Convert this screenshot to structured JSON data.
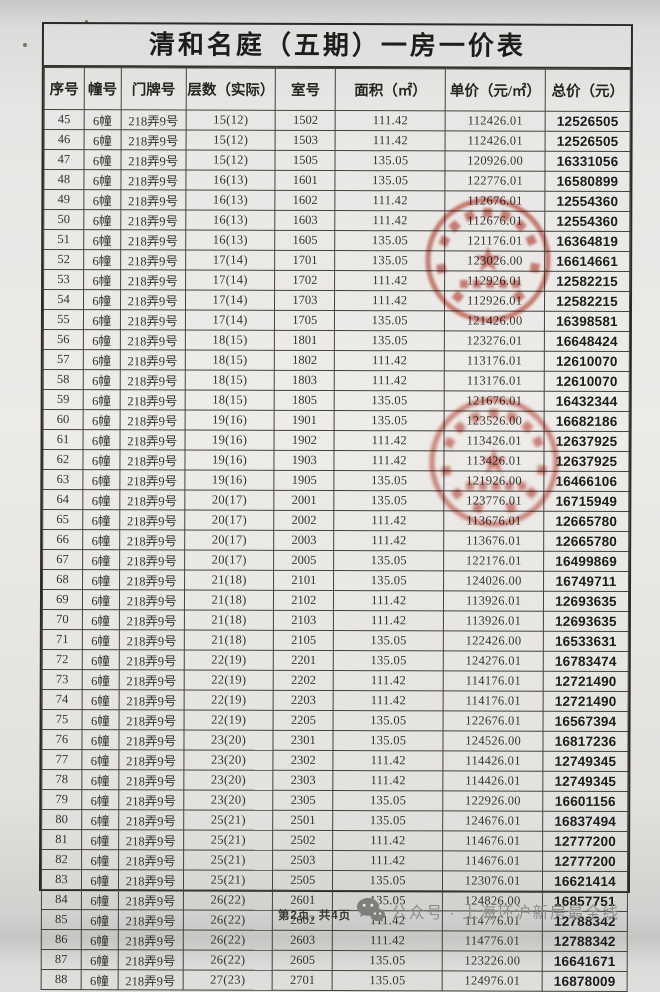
{
  "doc": {
    "title": "清和名庭（五期）一房一价表",
    "footer": {
      "page_info": "第2页, 共4页",
      "account": "公众号 · 上海环沪新房最全线"
    }
  },
  "table": {
    "columns": [
      "序号",
      "幢号",
      "门牌号",
      "层数（实际）",
      "室号",
      "面积（㎡）",
      "单价（元/㎡）",
      "总价（元）"
    ],
    "rows": [
      [
        "45",
        "6幢",
        "218弄9号",
        "15(12)",
        "1502",
        "111.42",
        "112426.01",
        "12526505"
      ],
      [
        "46",
        "6幢",
        "218弄9号",
        "15(12)",
        "1503",
        "111.42",
        "112426.01",
        "12526505"
      ],
      [
        "47",
        "6幢",
        "218弄9号",
        "15(12)",
        "1505",
        "135.05",
        "120926.00",
        "16331056"
      ],
      [
        "48",
        "6幢",
        "218弄9号",
        "16(13)",
        "1601",
        "135.05",
        "122776.01",
        "16580899"
      ],
      [
        "49",
        "6幢",
        "218弄9号",
        "16(13)",
        "1602",
        "111.42",
        "112676.01",
        "12554360"
      ],
      [
        "50",
        "6幢",
        "218弄9号",
        "16(13)",
        "1603",
        "111.42",
        "112676.01",
        "12554360"
      ],
      [
        "51",
        "6幢",
        "218弄9号",
        "16(13)",
        "1605",
        "135.05",
        "121176.01",
        "16364819"
      ],
      [
        "52",
        "6幢",
        "218弄9号",
        "17(14)",
        "1701",
        "135.05",
        "123026.00",
        "16614661"
      ],
      [
        "53",
        "6幢",
        "218弄9号",
        "17(14)",
        "1702",
        "111.42",
        "112926.01",
        "12582215"
      ],
      [
        "54",
        "6幢",
        "218弄9号",
        "17(14)",
        "1703",
        "111.42",
        "112926.01",
        "12582215"
      ],
      [
        "55",
        "6幢",
        "218弄9号",
        "17(14)",
        "1705",
        "135.05",
        "121426.00",
        "16398581"
      ],
      [
        "56",
        "6幢",
        "218弄9号",
        "18(15)",
        "1801",
        "135.05",
        "123276.01",
        "16648424"
      ],
      [
        "57",
        "6幢",
        "218弄9号",
        "18(15)",
        "1802",
        "111.42",
        "113176.01",
        "12610070"
      ],
      [
        "58",
        "6幢",
        "218弄9号",
        "18(15)",
        "1803",
        "111.42",
        "113176.01",
        "12610070"
      ],
      [
        "59",
        "6幢",
        "218弄9号",
        "18(15)",
        "1805",
        "135.05",
        "121676.01",
        "16432344"
      ],
      [
        "60",
        "6幢",
        "218弄9号",
        "19(16)",
        "1901",
        "135.05",
        "123526.00",
        "16682186"
      ],
      [
        "61",
        "6幢",
        "218弄9号",
        "19(16)",
        "1902",
        "111.42",
        "113426.01",
        "12637925"
      ],
      [
        "62",
        "6幢",
        "218弄9号",
        "19(16)",
        "1903",
        "111.42",
        "113426.01",
        "12637925"
      ],
      [
        "63",
        "6幢",
        "218弄9号",
        "19(16)",
        "1905",
        "135.05",
        "121926.00",
        "16466106"
      ],
      [
        "64",
        "6幢",
        "218弄9号",
        "20(17)",
        "2001",
        "135.05",
        "123776.01",
        "16715949"
      ],
      [
        "65",
        "6幢",
        "218弄9号",
        "20(17)",
        "2002",
        "111.42",
        "113676.01",
        "12665780"
      ],
      [
        "66",
        "6幢",
        "218弄9号",
        "20(17)",
        "2003",
        "111.42",
        "113676.01",
        "12665780"
      ],
      [
        "67",
        "6幢",
        "218弄9号",
        "20(17)",
        "2005",
        "135.05",
        "122176.01",
        "16499869"
      ],
      [
        "68",
        "6幢",
        "218弄9号",
        "21(18)",
        "2101",
        "135.05",
        "124026.00",
        "16749711"
      ],
      [
        "69",
        "6幢",
        "218弄9号",
        "21(18)",
        "2102",
        "111.42",
        "113926.01",
        "12693635"
      ],
      [
        "70",
        "6幢",
        "218弄9号",
        "21(18)",
        "2103",
        "111.42",
        "113926.01",
        "12693635"
      ],
      [
        "71",
        "6幢",
        "218弄9号",
        "21(18)",
        "2105",
        "135.05",
        "122426.00",
        "16533631"
      ],
      [
        "72",
        "6幢",
        "218弄9号",
        "22(19)",
        "2201",
        "135.05",
        "124276.01",
        "16783474"
      ],
      [
        "73",
        "6幢",
        "218弄9号",
        "22(19)",
        "2202",
        "111.42",
        "114176.01",
        "12721490"
      ],
      [
        "74",
        "6幢",
        "218弄9号",
        "22(19)",
        "2203",
        "111.42",
        "114176.01",
        "12721490"
      ],
      [
        "75",
        "6幢",
        "218弄9号",
        "22(19)",
        "2205",
        "135.05",
        "122676.01",
        "16567394"
      ],
      [
        "76",
        "6幢",
        "218弄9号",
        "23(20)",
        "2301",
        "135.05",
        "124526.00",
        "16817236"
      ],
      [
        "77",
        "6幢",
        "218弄9号",
        "23(20)",
        "2302",
        "111.42",
        "114426.01",
        "12749345"
      ],
      [
        "78",
        "6幢",
        "218弄9号",
        "23(20)",
        "2303",
        "111.42",
        "114426.01",
        "12749345"
      ],
      [
        "79",
        "6幢",
        "218弄9号",
        "23(20)",
        "2305",
        "135.05",
        "122926.00",
        "16601156"
      ],
      [
        "80",
        "6幢",
        "218弄9号",
        "25(21)",
        "2501",
        "135.05",
        "124676.01",
        "16837494"
      ],
      [
        "81",
        "6幢",
        "218弄9号",
        "25(21)",
        "2502",
        "111.42",
        "114676.01",
        "12777200"
      ],
      [
        "82",
        "6幢",
        "218弄9号",
        "25(21)",
        "2503",
        "111.42",
        "114676.01",
        "12777200"
      ],
      [
        "83",
        "6幢",
        "218弄9号",
        "25(21)",
        "2505",
        "135.05",
        "123076.01",
        "16621414"
      ],
      [
        "84",
        "6幢",
        "218弄9号",
        "26(22)",
        "2601",
        "135.05",
        "124826.00",
        "16857751"
      ],
      [
        "85",
        "6幢",
        "218弄9号",
        "26(22)",
        "2602",
        "111.42",
        "114776.01",
        "12788342"
      ],
      [
        "86",
        "6幢",
        "218弄9号",
        "26(22)",
        "2603",
        "111.42",
        "114776.01",
        "12788342"
      ],
      [
        "87",
        "6幢",
        "218弄9号",
        "26(22)",
        "2605",
        "135.05",
        "123226.00",
        "16641671"
      ],
      [
        "88",
        "6幢",
        "218弄9号",
        "27(23)",
        "2701",
        "135.05",
        "124976.01",
        "16878009"
      ]
    ]
  },
  "stamps": [
    {
      "shape": "circular-red-official-seal",
      "center": "star",
      "legible_text": "",
      "color": "#bf3a2b"
    },
    {
      "shape": "circular-red-official-seal",
      "center": "star",
      "legible_text": "",
      "color": "#bf3a2b"
    }
  ],
  "colors": {
    "paper": "#ebe9e6",
    "grid_line": "#44423f",
    "seal_red": "#bf3a2b",
    "footer_gray": "#8e8d8b"
  }
}
